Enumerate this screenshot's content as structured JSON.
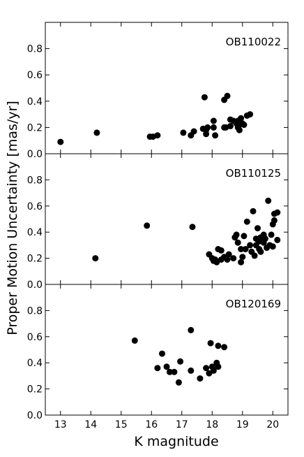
{
  "chart_data": {
    "type": "scatter",
    "xlabel": "K magnitude",
    "ylabel": "Proper Motion Uncertainty [mas/yr]",
    "xlim": [
      12.5,
      20.5
    ],
    "x_ticks": [
      "13",
      "14",
      "15",
      "16",
      "17",
      "18",
      "19",
      "20"
    ],
    "ylim": [
      0.0,
      1.0
    ],
    "y_ticks": [
      "0.0",
      "0.2",
      "0.4",
      "0.6",
      "0.8"
    ],
    "grid": false,
    "marker_color": "#000000",
    "panels": [
      {
        "label": "OB110022",
        "points": [
          [
            13.0,
            0.09
          ],
          [
            14.2,
            0.16
          ],
          [
            15.95,
            0.13
          ],
          [
            16.05,
            0.13
          ],
          [
            16.2,
            0.14
          ],
          [
            17.05,
            0.16
          ],
          [
            17.3,
            0.14
          ],
          [
            17.4,
            0.17
          ],
          [
            17.7,
            0.19
          ],
          [
            17.75,
            0.43
          ],
          [
            17.8,
            0.15
          ],
          [
            17.85,
            0.2
          ],
          [
            17.8,
            0.18
          ],
          [
            18.05,
            0.2
          ],
          [
            18.1,
            0.14
          ],
          [
            18.05,
            0.25
          ],
          [
            18.4,
            0.41
          ],
          [
            18.5,
            0.44
          ],
          [
            18.4,
            0.2
          ],
          [
            18.45,
            0.2
          ],
          [
            18.6,
            0.26
          ],
          [
            18.6,
            0.21
          ],
          [
            18.7,
            0.25
          ],
          [
            18.8,
            0.23
          ],
          [
            18.85,
            0.2
          ],
          [
            18.85,
            0.25
          ],
          [
            18.9,
            0.18
          ],
          [
            18.95,
            0.27
          ],
          [
            18.9,
            0.22
          ],
          [
            19.0,
            0.23
          ],
          [
            19.05,
            0.22
          ],
          [
            19.15,
            0.29
          ],
          [
            19.25,
            0.3
          ]
        ]
      },
      {
        "label": "OB110125",
        "points": [
          [
            14.15,
            0.2
          ],
          [
            15.85,
            0.45
          ],
          [
            17.35,
            0.44
          ],
          [
            17.9,
            0.23
          ],
          [
            18.0,
            0.2
          ],
          [
            18.05,
            0.18
          ],
          [
            18.1,
            0.19
          ],
          [
            18.15,
            0.17
          ],
          [
            18.2,
            0.27
          ],
          [
            18.3,
            0.26
          ],
          [
            18.3,
            0.19
          ],
          [
            18.4,
            0.21
          ],
          [
            18.5,
            0.19
          ],
          [
            18.55,
            0.23
          ],
          [
            18.7,
            0.2
          ],
          [
            18.75,
            0.36
          ],
          [
            18.8,
            0.38
          ],
          [
            18.85,
            0.32
          ],
          [
            18.95,
            0.27
          ],
          [
            18.95,
            0.17
          ],
          [
            19.0,
            0.21
          ],
          [
            19.05,
            0.37
          ],
          [
            19.1,
            0.27
          ],
          [
            19.15,
            0.48
          ],
          [
            19.25,
            0.3
          ],
          [
            19.3,
            0.25
          ],
          [
            19.35,
            0.56
          ],
          [
            19.4,
            0.22
          ],
          [
            19.45,
            0.35
          ],
          [
            19.45,
            0.3
          ],
          [
            19.5,
            0.43
          ],
          [
            19.55,
            0.27
          ],
          [
            19.55,
            0.33
          ],
          [
            19.6,
            0.25
          ],
          [
            19.6,
            0.36
          ],
          [
            19.7,
            0.32
          ],
          [
            19.7,
            0.38
          ],
          [
            19.75,
            0.35
          ],
          [
            19.8,
            0.28
          ],
          [
            19.85,
            0.64
          ],
          [
            19.9,
            0.3
          ],
          [
            19.95,
            0.38
          ],
          [
            20.0,
            0.29
          ],
          [
            20.0,
            0.46
          ],
          [
            20.05,
            0.49
          ],
          [
            20.05,
            0.54
          ],
          [
            20.15,
            0.55
          ],
          [
            20.15,
            0.34
          ]
        ]
      },
      {
        "label": "OB120169",
        "points": [
          [
            15.45,
            0.57
          ],
          [
            16.2,
            0.36
          ],
          [
            16.35,
            0.47
          ],
          [
            16.5,
            0.37
          ],
          [
            16.6,
            0.33
          ],
          [
            16.75,
            0.33
          ],
          [
            16.9,
            0.25
          ],
          [
            16.95,
            0.41
          ],
          [
            17.3,
            0.65
          ],
          [
            17.3,
            0.34
          ],
          [
            17.6,
            0.28
          ],
          [
            17.8,
            0.36
          ],
          [
            17.9,
            0.32
          ],
          [
            17.95,
            0.55
          ],
          [
            18.0,
            0.37
          ],
          [
            18.05,
            0.34
          ],
          [
            18.15,
            0.4
          ],
          [
            18.2,
            0.53
          ],
          [
            18.2,
            0.37
          ],
          [
            18.4,
            0.52
          ]
        ]
      }
    ]
  }
}
